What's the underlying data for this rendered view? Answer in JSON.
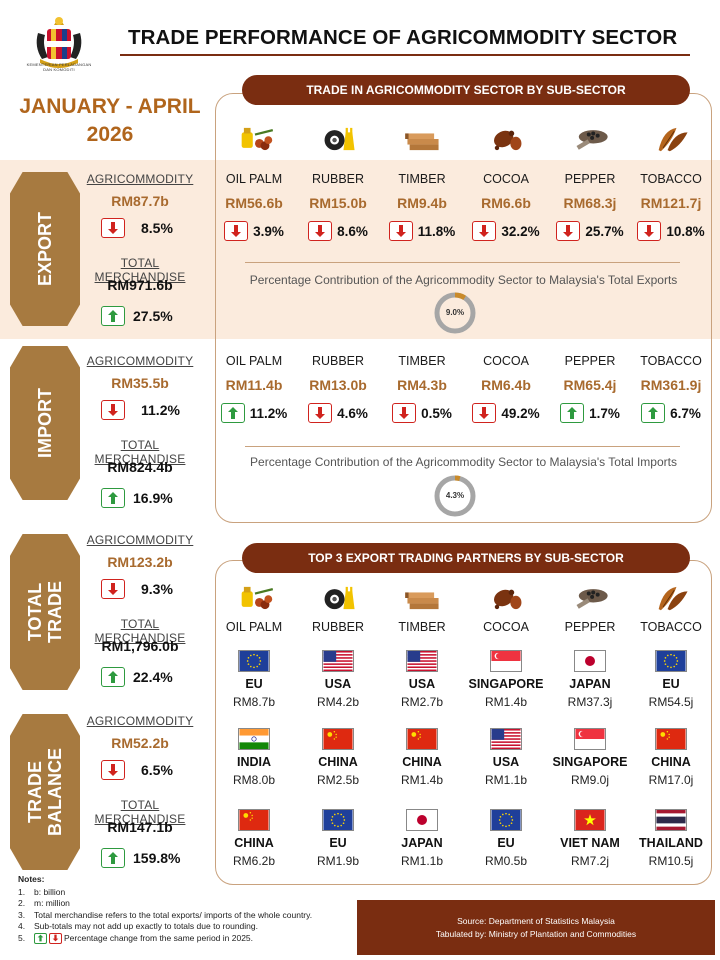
{
  "header": {
    "logo_text": "KEMENTERIAN PERLADANGAN DAN KOMODITI",
    "title": "TRADE PERFORMANCE OF AGRICOMMODITY SECTOR",
    "period_line1": "JANUARY - APRIL",
    "period_line2": "2026"
  },
  "colors": {
    "accent": "#7a2d11",
    "tab": "#a77a40",
    "value": "#a86a2e",
    "down": "#d0231e",
    "up": "#2e9a3f",
    "band": "#fbebdd"
  },
  "sub_sector_section": {
    "title": "TRADE IN AGRICOMMODITY SECTOR BY SUB-SECTOR"
  },
  "partners_section": {
    "title": "TOP 3 EXPORT TRADING PARTNERS BY SUB-SECTOR"
  },
  "export": {
    "tab": "EXPORT",
    "agri_label": "AGRICOMMODITY",
    "agri_value": "RM87.7b",
    "agri_change": "8.5%",
    "agri_dir": "down",
    "total_label": "TOTAL MERCHANDISE",
    "total_value": "RM971.6b",
    "total_change": "27.5%",
    "total_dir": "up",
    "contribution_text": "Percentage Contribution of the Agricommodity Sector to Malaysia's Total Exports",
    "contribution_pct": 9.0,
    "contribution_label": "9.0%",
    "columns": [
      {
        "name": "OIL PALM",
        "value": "RM56.6b",
        "change": "3.9%",
        "dir": "down"
      },
      {
        "name": "RUBBER",
        "value": "RM15.0b",
        "change": "8.6%",
        "dir": "down"
      },
      {
        "name": "TIMBER",
        "value": "RM9.4b",
        "change": "11.8%",
        "dir": "down"
      },
      {
        "name": "COCOA",
        "value": "RM6.6b",
        "change": "32.2%",
        "dir": "down"
      },
      {
        "name": "PEPPER",
        "value": "RM68.3j",
        "change": "25.7%",
        "dir": "down"
      },
      {
        "name": "TOBACCO",
        "value": "RM121.7j",
        "change": "10.8%",
        "dir": "down"
      }
    ]
  },
  "import": {
    "tab": "IMPORT",
    "agri_label": "AGRICOMMODITY",
    "agri_value": "RM35.5b",
    "agri_change": "11.2%",
    "agri_dir": "down",
    "total_label": "TOTAL MERCHANDISE",
    "total_value": "RM824.4b",
    "total_change": "16.9%",
    "total_dir": "up",
    "contribution_text": "Percentage Contribution of the Agricommodity Sector to Malaysia's Total Imports",
    "contribution_pct": 4.3,
    "contribution_label": "4.3%",
    "columns": [
      {
        "name": "OIL PALM",
        "value": "RM11.4b",
        "change": "11.2%",
        "dir": "up"
      },
      {
        "name": "RUBBER",
        "value": "RM13.0b",
        "change": "4.6%",
        "dir": "down"
      },
      {
        "name": "TIMBER",
        "value": "RM4.3b",
        "change": "0.5%",
        "dir": "down"
      },
      {
        "name": "COCOA",
        "value": "RM6.4b",
        "change": "49.2%",
        "dir": "down"
      },
      {
        "name": "PEPPER",
        "value": "RM65.4j",
        "change": "1.7%",
        "dir": "up"
      },
      {
        "name": "TOBACCO",
        "value": "RM361.9j",
        "change": "6.7%",
        "dir": "up"
      }
    ]
  },
  "total_trade": {
    "tab_line1": "TOTAL",
    "tab_line2": "TRADE",
    "agri_label": "AGRICOMMODITY",
    "agri_value": "RM123.2b",
    "agri_change": "9.3%",
    "agri_dir": "down",
    "total_label": "TOTAL MERCHANDISE",
    "total_value": "RM1,796.0b",
    "total_change": "22.4%",
    "total_dir": "up"
  },
  "trade_balance": {
    "tab_line1": "TRADE",
    "tab_line2": "BALANCE",
    "agri_label": "AGRICOMMODITY",
    "agri_value": "RM52.2b",
    "agri_change": "6.5%",
    "agri_dir": "down",
    "total_label": "TOTAL MERCHANDISE",
    "total_value": "RM147.1b",
    "total_change": "159.8%",
    "total_dir": "up"
  },
  "partners": {
    "columns": [
      {
        "name": "OIL PALM",
        "icon": "oil-palm-icon",
        "partners": [
          {
            "country": "EU",
            "flag": "eu",
            "value": "RM8.7b"
          },
          {
            "country": "INDIA",
            "flag": "india",
            "value": "RM8.0b"
          },
          {
            "country": "CHINA",
            "flag": "china",
            "value": "RM6.2b"
          }
        ]
      },
      {
        "name": "RUBBER",
        "icon": "rubber-icon",
        "partners": [
          {
            "country": "USA",
            "flag": "usa",
            "value": "RM4.2b"
          },
          {
            "country": "CHINA",
            "flag": "china",
            "value": "RM2.5b"
          },
          {
            "country": "EU",
            "flag": "eu",
            "value": "RM1.9b"
          }
        ]
      },
      {
        "name": "TIMBER",
        "icon": "timber-icon",
        "partners": [
          {
            "country": "USA",
            "flag": "usa",
            "value": "RM2.7b"
          },
          {
            "country": "CHINA",
            "flag": "china",
            "value": "RM1.4b"
          },
          {
            "country": "JAPAN",
            "flag": "japan",
            "value": "RM1.1b"
          }
        ]
      },
      {
        "name": "COCOA",
        "icon": "cocoa-icon",
        "partners": [
          {
            "country": "SINGAPORE",
            "flag": "singapore",
            "value": "RM1.4b"
          },
          {
            "country": "USA",
            "flag": "usa",
            "value": "RM1.1b"
          },
          {
            "country": "EU",
            "flag": "eu",
            "value": "RM0.5b"
          }
        ]
      },
      {
        "name": "PEPPER",
        "icon": "pepper-icon",
        "partners": [
          {
            "country": "JAPAN",
            "flag": "japan",
            "value": "RM37.3j"
          },
          {
            "country": "SINGAPORE",
            "flag": "singapore",
            "value": "RM9.0j"
          },
          {
            "country": "VIET NAM",
            "flag": "vietnam",
            "value": "RM7.2j"
          }
        ]
      },
      {
        "name": "TOBACCO",
        "icon": "tobacco-icon",
        "partners": [
          {
            "country": "EU",
            "flag": "eu",
            "value": "RM54.5j"
          },
          {
            "country": "CHINA",
            "flag": "china",
            "value": "RM17.0j"
          },
          {
            "country": "THAILAND",
            "flag": "thailand",
            "value": "RM10.5j"
          }
        ]
      }
    ]
  },
  "notes": {
    "title": "Notes:",
    "items": [
      "b: billion",
      "m: million",
      "Total merchandise refers to the total exports/ imports of the whole country.",
      "Sub-totals may not add up exactly to totals due to rounding.",
      "Percentage change from the same period in 2025."
    ]
  },
  "footer": {
    "source": "Source: Department of Statistics Malaysia",
    "tabulated": "Tabulated by: Ministry of Plantation and Commodities"
  }
}
